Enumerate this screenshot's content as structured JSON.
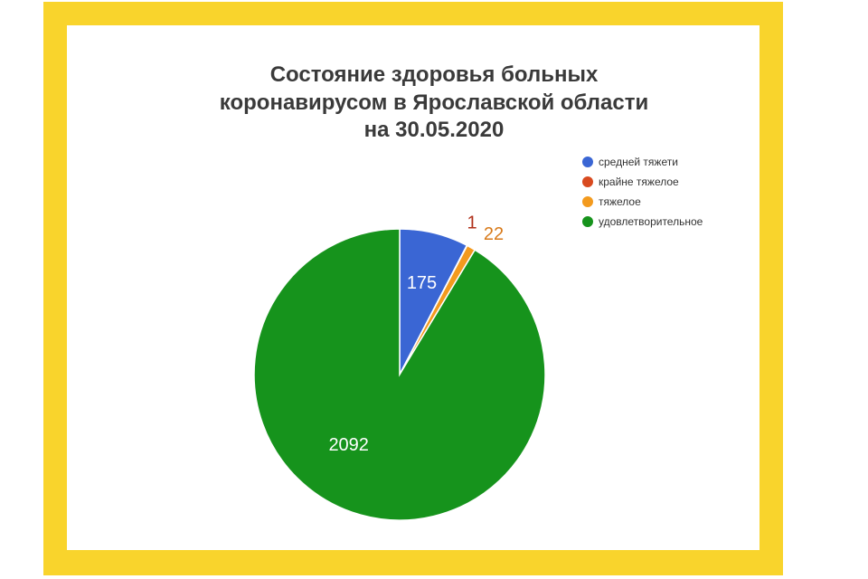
{
  "chart_data": {
    "type": "pie",
    "title": [
      "Состояние здоровья больных",
      "коронавирусом в Ярославской области",
      "на  30.05.2020"
    ],
    "slices": [
      {
        "label": "средней тяжети",
        "value": 175,
        "color": "#3a66d4",
        "label_color": "#ffffff",
        "label_pos": "inside"
      },
      {
        "label": "крайне тяжелое",
        "value": 1,
        "color": "#d84a1f",
        "label_color": "#b0301a",
        "label_pos": "outside"
      },
      {
        "label": "тяжелое",
        "value": 22,
        "color": "#f39a1e",
        "label_color": "#d87a1a",
        "label_pos": "outside"
      },
      {
        "label": "удовлетворительное",
        "value": 2092,
        "color": "#16931c",
        "label_color": "#ffffff",
        "label_pos": "inside"
      }
    ],
    "legend": "top-right",
    "start": "12 o'clock",
    "direction": "clockwise"
  },
  "colors": {
    "frame": "#f9d42c",
    "card": "#ffffff",
    "title": "#3a3a3a"
  }
}
